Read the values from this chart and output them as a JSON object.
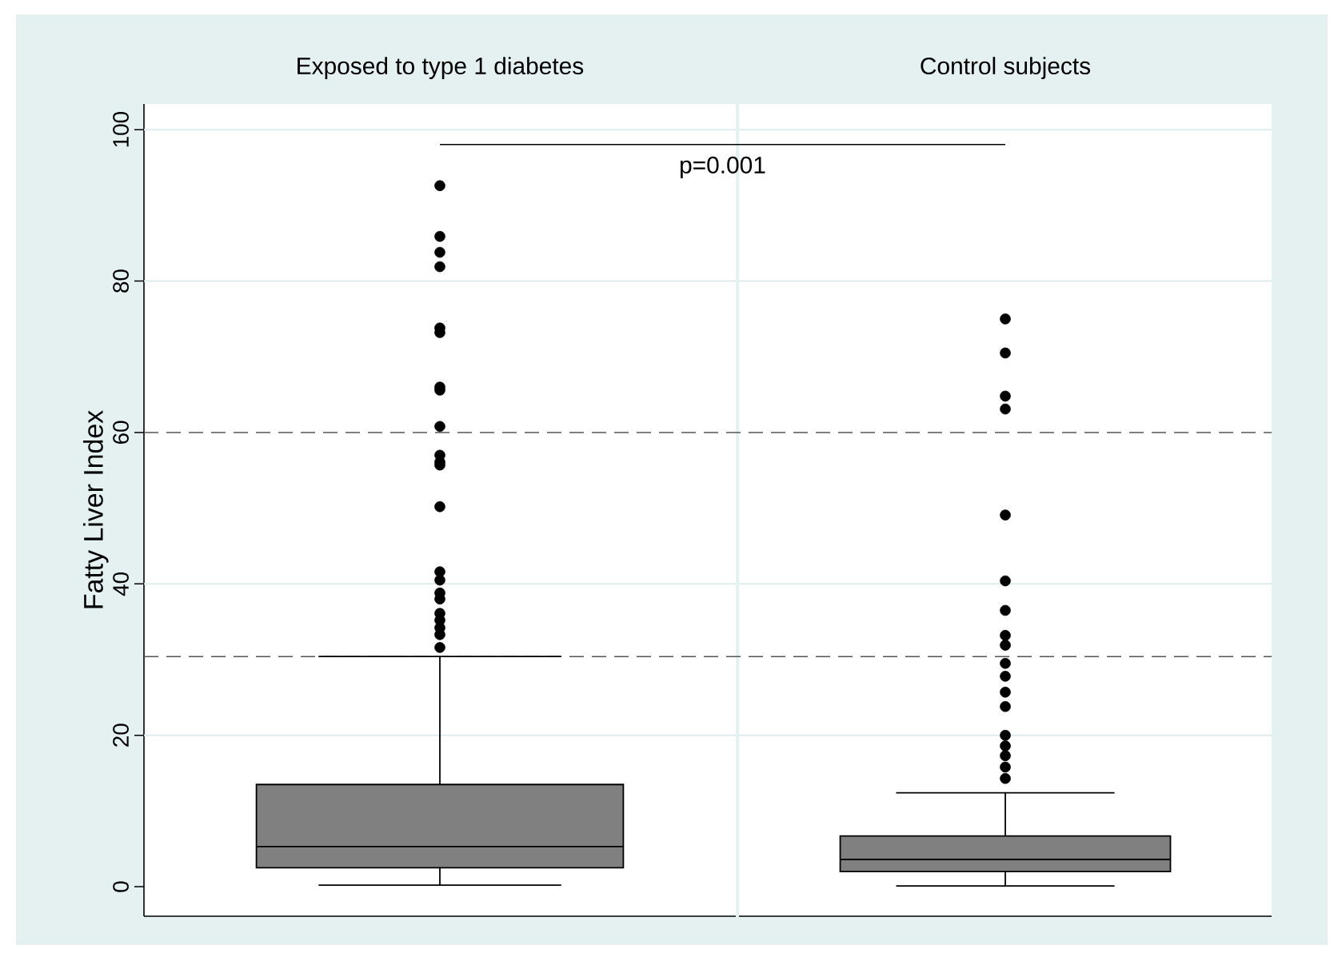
{
  "chart_data": {
    "type": "box",
    "categories": [
      "Exposed to type 1 diabetes",
      "Control subjects"
    ],
    "ylabel": "Fatty Liver Index",
    "boxes": [
      {
        "low": 0.2,
        "q1": 2.5,
        "median": 5.3,
        "q3": 13.5,
        "high": 30.4,
        "outliers": [
          92.6,
          85.9,
          83.8,
          81.9,
          73.8,
          73.2,
          66.0,
          65.6,
          60.8,
          57.0,
          56.1,
          55.7,
          50.2,
          41.6,
          40.5,
          38.8,
          38.0,
          36.1,
          35.2,
          34.2,
          33.3,
          31.6
        ]
      },
      {
        "low": 0.1,
        "q1": 2.0,
        "median": 3.6,
        "q3": 6.7,
        "high": 12.4,
        "outliers": [
          75.0,
          70.5,
          64.8,
          63.1,
          49.1,
          40.4,
          36.5,
          33.2,
          31.9,
          29.5,
          27.8,
          25.7,
          23.8,
          20.0,
          18.6,
          17.3,
          15.8,
          14.3
        ]
      }
    ],
    "colors": [
      "#808080",
      "#808080"
    ],
    "ylim": [
      -3.9,
      103.4
    ],
    "yticks": [
      0,
      20,
      40,
      60,
      80,
      100
    ],
    "grid": "y",
    "ref_lines": [
      {
        "axis": "y",
        "value": 60,
        "line_style": "dashed",
        "color": "#555555"
      },
      {
        "axis": "y",
        "value": 30.4,
        "line_style": "dashed",
        "color": "#555555"
      }
    ],
    "annotations": [
      "p=0.001"
    ]
  }
}
